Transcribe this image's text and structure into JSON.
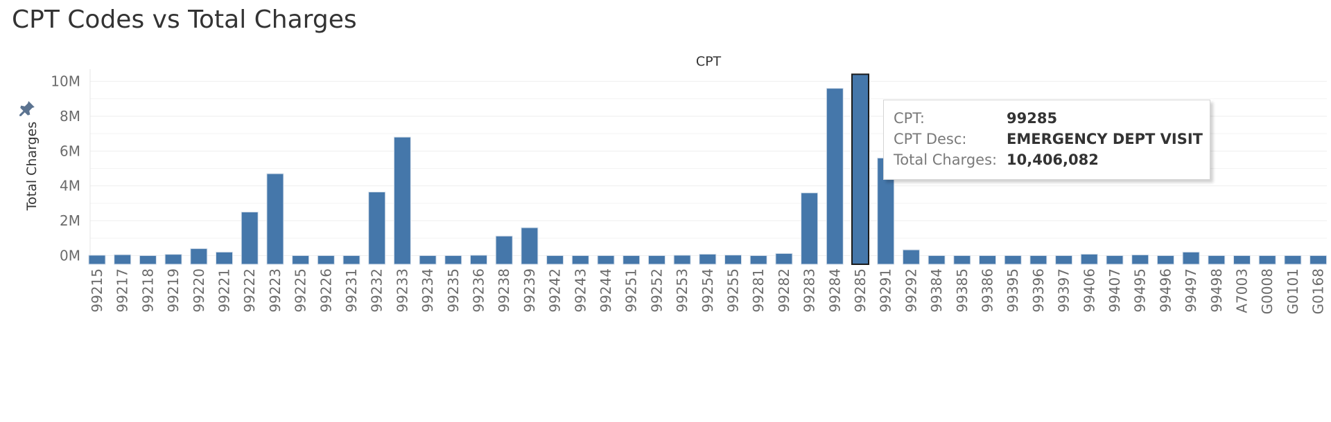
{
  "title": "CPT Codes vs Total Charges",
  "colors": {
    "bar": "#4577aa",
    "bar_stroke": "#d9e2ec",
    "highlight_border": "#1a1a1a",
    "grid": "#eeeeee",
    "axis_text": "#6b6b6b",
    "title_text": "#333333"
  },
  "icons": {
    "pin": "pin-icon"
  },
  "chart_data": {
    "type": "bar",
    "title": "CPT Codes vs Total Charges",
    "xlabel": "CPT",
    "ylabel": "Total Charges",
    "ylim": [
      -0.5,
      10.5
    ],
    "yticks": [
      0,
      2,
      4,
      6,
      8,
      10
    ],
    "ytick_labels": [
      "0M",
      "2M",
      "4M",
      "6M",
      "8M",
      "10M"
    ],
    "grid": true,
    "highlighted": "99285",
    "categories": [
      "99215",
      "99217",
      "99218",
      "99219",
      "99220",
      "99221",
      "99222",
      "99223",
      "99225",
      "99226",
      "99231",
      "99232",
      "99233",
      "99234",
      "99235",
      "99236",
      "99238",
      "99239",
      "99242",
      "99243",
      "99244",
      "99251",
      "99252",
      "99253",
      "99254",
      "99255",
      "99281",
      "99282",
      "99283",
      "99284",
      "99285",
      "99291",
      "99292",
      "99384",
      "99385",
      "99386",
      "99395",
      "99396",
      "99397",
      "99406",
      "99407",
      "99495",
      "99496",
      "99497",
      "99498",
      "A7003",
      "G0008",
      "G0101",
      "G0168"
    ],
    "values": [
      0.02,
      0.05,
      0.0,
      0.07,
      0.4,
      0.2,
      2.5,
      4.7,
      0.0,
      0.0,
      0.0,
      3.65,
      6.8,
      0.0,
      0.0,
      0.02,
      1.12,
      1.6,
      0.0,
      0.0,
      0.0,
      0.0,
      0.0,
      0.02,
      0.08,
      0.03,
      0.0,
      0.12,
      3.6,
      9.6,
      10.406082,
      5.6,
      0.33,
      0.0,
      0.0,
      0.0,
      0.0,
      0.0,
      0.0,
      0.08,
      0.0,
      0.04,
      0.0,
      0.2,
      0.0,
      0.0,
      0.0,
      0.0,
      0.0
    ]
  },
  "tooltip": {
    "cpt_label": "CPT:",
    "cpt_value": "99285",
    "desc_label": "CPT Desc:",
    "desc_value": "EMERGENCY DEPT VISIT",
    "charges_label": "Total Charges:",
    "charges_value": "10,406,082"
  }
}
